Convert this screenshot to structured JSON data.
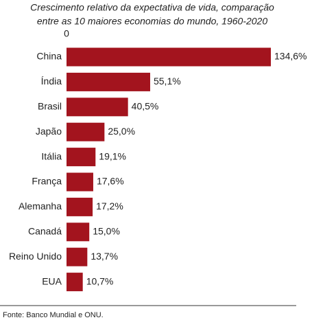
{
  "chart_data": {
    "type": "bar",
    "orientation": "horizontal",
    "title": [
      "Crescimento relativo da expectativa de vida, comparação",
      "entre as 10 maiores economias do mundo, 1960-2020"
    ],
    "categories": [
      "China",
      "Índia",
      "Brasil",
      "Japão",
      "Itália",
      "França",
      "Alemanha",
      "Canadá",
      "Reino Unido",
      "EUA"
    ],
    "values": [
      134.6,
      55.1,
      40.5,
      25.0,
      19.1,
      17.6,
      17.2,
      15.0,
      13.7,
      10.7
    ],
    "value_labels": [
      "134,6%",
      "55,1%",
      "40,5%",
      "25,0%",
      "19,1%",
      "17,6%",
      "17,2%",
      "15,0%",
      "13,7%",
      "10,7%"
    ],
    "color": "#a3141e",
    "xlim": [
      0,
      134.6
    ],
    "xticks": [
      0
    ],
    "source": "Fonte: Banco Mundial e ONU."
  }
}
